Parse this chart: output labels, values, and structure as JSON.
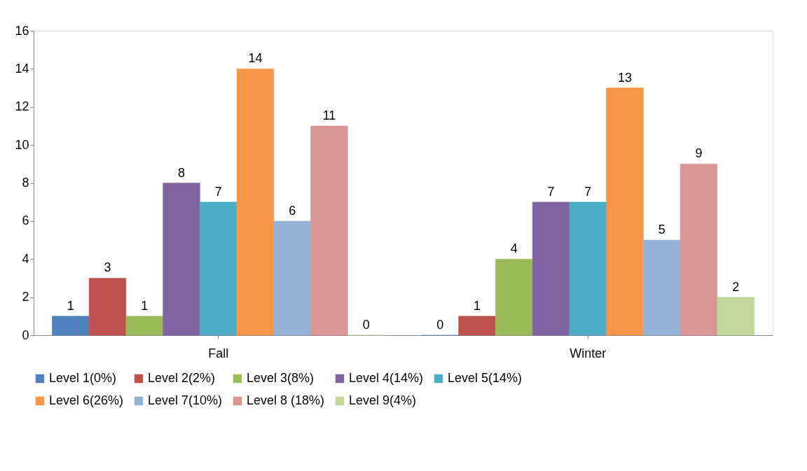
{
  "chart_data": {
    "type": "bar",
    "categories": [
      "Fall",
      "Winter"
    ],
    "series": [
      {
        "name": "Level 1(0%)",
        "color": "#4f81bd",
        "values": [
          1,
          0
        ]
      },
      {
        "name": "Level 2(2%)",
        "color": "#c0504d",
        "values": [
          3,
          1
        ]
      },
      {
        "name": "Level 3(8%)",
        "color": "#9bbb59",
        "values": [
          1,
          4
        ]
      },
      {
        "name": "Level 4(14%)",
        "color": "#8064a2",
        "values": [
          8,
          7
        ]
      },
      {
        "name": "Level 5(14%)",
        "color": "#4bacc6",
        "values": [
          7,
          7
        ]
      },
      {
        "name": "Level 6(26%)",
        "color": "#f79646",
        "values": [
          14,
          13
        ]
      },
      {
        "name": "Level 7(10%)",
        "color": "#95b3d7",
        "values": [
          6,
          5
        ]
      },
      {
        "name": "Level 8 (18%)",
        "color": "#d99694",
        "values": [
          11,
          9
        ]
      },
      {
        "name": "Level 9(4%)",
        "color": "#c3d69b",
        "values": [
          0,
          2
        ]
      }
    ],
    "ylim": [
      0,
      16
    ],
    "yticks": [
      0,
      2,
      4,
      6,
      8,
      10,
      12,
      14,
      16
    ],
    "grid": false,
    "legend": "bottom",
    "data_labels": true
  }
}
